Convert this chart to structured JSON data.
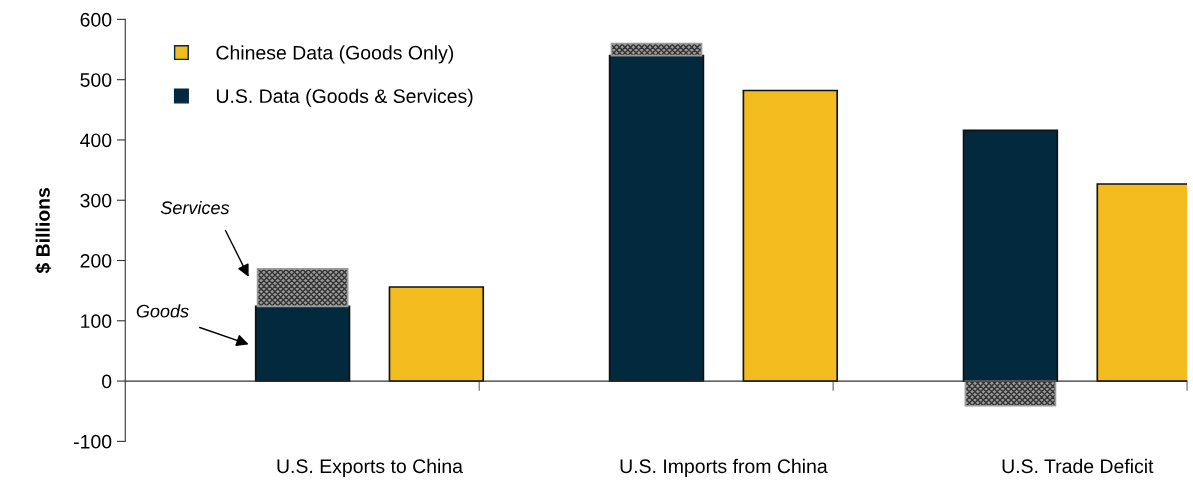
{
  "chart_data": {
    "type": "bar",
    "ylabel": "$ Billions",
    "categories": [
      "U.S. Exports to China",
      "U.S. Imports from China",
      "U.S. Trade Deficit"
    ],
    "series": [
      {
        "name": "U.S. Data (Goods & Services)",
        "color": "#03293f",
        "values": [
          124,
          540,
          416
        ]
      },
      {
        "color": "#9a9a9a",
        "base": [
          124,
          540,
          0
        ],
        "values": [
          62,
          20,
          -41
        ]
      },
      {
        "name": "Chinese Data (Goods Only)",
        "color": "#f2bc1f",
        "values": [
          156,
          482,
          327
        ]
      }
    ],
    "ylim": [
      -100,
      600
    ],
    "yticks": [
      -100,
      0,
      100,
      200,
      300,
      400,
      500,
      600
    ],
    "legend": "top left",
    "annotations": [
      "Services",
      "Goods"
    ]
  }
}
